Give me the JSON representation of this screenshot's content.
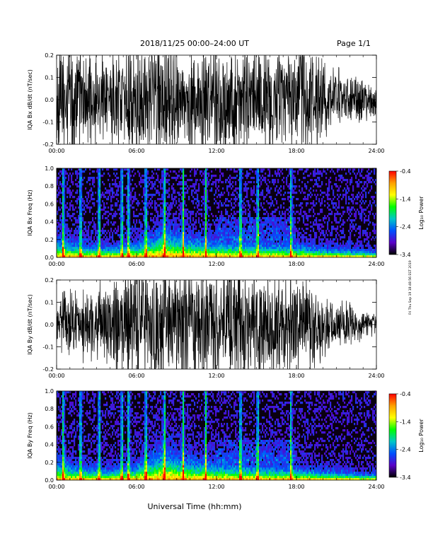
{
  "header": {
    "date_range": "2018/11/25  00:00–24:00 UT",
    "page": "Page 1/1"
  },
  "footer": {
    "x_axis_title": "Universal Time (hh:mm)"
  },
  "side_stamp": "Fri Thu Sep 19 18:48:56 EST 2019",
  "colors": {
    "background": "#ffffff",
    "trace": "#000000",
    "spectrogram_bg": "#0a0010"
  },
  "colorbar": {
    "label": "Log₁₀ Power",
    "ticks": [
      "-0.4",
      "-1.4",
      "-2.4",
      "-3.4"
    ],
    "stops": [
      "#ff0000",
      "#ffa000",
      "#ffff00",
      "#00ff00",
      "#00c8c8",
      "#0050ff",
      "#5a00c8",
      "#000000"
    ]
  },
  "chart_data": [
    {
      "type": "line",
      "title": "",
      "ylabel": "IQA Bx dB/dt (nT/sec)",
      "xlabel": "",
      "xlim": [
        0,
        24
      ],
      "ylim": [
        -0.2,
        0.2
      ],
      "x_ticks": [
        "00:00",
        "06:00",
        "12:00",
        "18:00",
        "24:00"
      ],
      "y_ticks": [
        "-0.2",
        "-0.1",
        "0.0",
        "0.1",
        "0.2"
      ],
      "x_hours": [
        0,
        0.5,
        1,
        1.5,
        2,
        2.5,
        3,
        3.5,
        4,
        4.5,
        5,
        5.5,
        6,
        6.5,
        7,
        7.5,
        8,
        8.5,
        9,
        9.5,
        10,
        10.5,
        11,
        11.5,
        12,
        12.5,
        13,
        13.5,
        14,
        14.5,
        15,
        15.5,
        16,
        16.5,
        17,
        17.5,
        18,
        18.5,
        19,
        19.5,
        20,
        20.5,
        21,
        21.5,
        22,
        22.5,
        23,
        23.5,
        24
      ],
      "amplitude": [
        0.18,
        0.22,
        0.22,
        0.2,
        0.2,
        0.18,
        0.19,
        0.17,
        0.16,
        0.2,
        0.17,
        0.22,
        0.22,
        0.2,
        0.18,
        0.22,
        0.22,
        0.22,
        0.21,
        0.2,
        0.22,
        0.2,
        0.2,
        0.22,
        0.22,
        0.22,
        0.22,
        0.2,
        0.22,
        0.2,
        0.2,
        0.2,
        0.18,
        0.18,
        0.18,
        0.18,
        0.16,
        0.22,
        0.18,
        0.16,
        0.14,
        0.12,
        0.12,
        0.1,
        0.09,
        0.08,
        0.08,
        0.07,
        0.06
      ]
    },
    {
      "type": "heatmap",
      "title": "",
      "ylabel": "IQA Bx Freq (Hz)",
      "xlabel": "",
      "xlim": [
        0,
        24
      ],
      "ylim": [
        0,
        1.0
      ],
      "x_ticks": [
        "00:00",
        "06:00",
        "12:00",
        "18:00",
        "24:00"
      ],
      "y_ticks": [
        "0.0",
        "0.2",
        "0.4",
        "0.6",
        "0.8",
        "1.0"
      ],
      "color_range": [
        -3.4,
        -0.4
      ],
      "vertical_bursts_hours": [
        0.5,
        1.8,
        3.2,
        4.9,
        5.4,
        6.7,
        8.1,
        9.5,
        11.2,
        13.8,
        15.1,
        17.6
      ],
      "activity_hours": [
        0,
        2,
        4,
        6,
        8,
        10,
        12,
        14,
        16,
        18,
        20,
        22,
        24
      ],
      "activity_peak_freq_hz": [
        0.12,
        0.08,
        0.07,
        0.09,
        0.18,
        0.12,
        0.1,
        0.1,
        0.09,
        0.08,
        0.06,
        0.05,
        0.04
      ]
    },
    {
      "type": "line",
      "title": "",
      "ylabel": "IQA By dB/dt (nT/sec)",
      "xlabel": "",
      "xlim": [
        0,
        24
      ],
      "ylim": [
        -0.2,
        0.2
      ],
      "x_ticks": [
        "00:00",
        "06:00",
        "12:00",
        "18:00",
        "24:00"
      ],
      "y_ticks": [
        "-0.2",
        "-0.1",
        "0.0",
        "0.1",
        "0.2"
      ],
      "x_hours": [
        0,
        0.5,
        1,
        1.5,
        2,
        2.5,
        3,
        3.5,
        4,
        4.5,
        5,
        5.5,
        6,
        6.5,
        7,
        7.5,
        8,
        8.5,
        9,
        9.5,
        10,
        10.5,
        11,
        11.5,
        12,
        12.5,
        13,
        13.5,
        14,
        14.5,
        15,
        15.5,
        16,
        16.5,
        17,
        17.5,
        18,
        18.5,
        19,
        19.5,
        20,
        20.5,
        21,
        21.5,
        22,
        22.5,
        23,
        23.5,
        24
      ],
      "amplitude": [
        0.08,
        0.12,
        0.14,
        0.12,
        0.13,
        0.14,
        0.15,
        0.16,
        0.18,
        0.22,
        0.2,
        0.22,
        0.22,
        0.22,
        0.2,
        0.22,
        0.22,
        0.22,
        0.22,
        0.22,
        0.22,
        0.22,
        0.22,
        0.22,
        0.22,
        0.22,
        0.22,
        0.22,
        0.22,
        0.22,
        0.22,
        0.22,
        0.2,
        0.2,
        0.18,
        0.2,
        0.18,
        0.16,
        0.18,
        0.14,
        0.12,
        0.1,
        0.1,
        0.09,
        0.09,
        0.07,
        0.06,
        0.05,
        0.04
      ]
    },
    {
      "type": "heatmap",
      "title": "",
      "ylabel": "IQA By Freq (Hz)",
      "xlabel": "",
      "xlim": [
        0,
        24
      ],
      "ylim": [
        0,
        1.0
      ],
      "x_ticks": [
        "00:00",
        "06:00",
        "12:00",
        "18:00",
        "24:00"
      ],
      "y_ticks": [
        "0.0",
        "0.2",
        "0.4",
        "0.6",
        "0.8",
        "1.0"
      ],
      "color_range": [
        -3.4,
        -0.4
      ],
      "vertical_bursts_hours": [
        0.5,
        1.8,
        3.2,
        4.9,
        5.4,
        6.7,
        8.1,
        9.5,
        11.2,
        13.8,
        15.1,
        17.6
      ],
      "activity_hours": [
        0,
        2,
        4,
        6,
        8,
        10,
        12,
        14,
        16,
        18,
        20,
        22,
        24
      ],
      "activity_peak_freq_hz": [
        0.12,
        0.08,
        0.07,
        0.1,
        0.2,
        0.13,
        0.11,
        0.1,
        0.09,
        0.08,
        0.06,
        0.05,
        0.04
      ]
    }
  ]
}
